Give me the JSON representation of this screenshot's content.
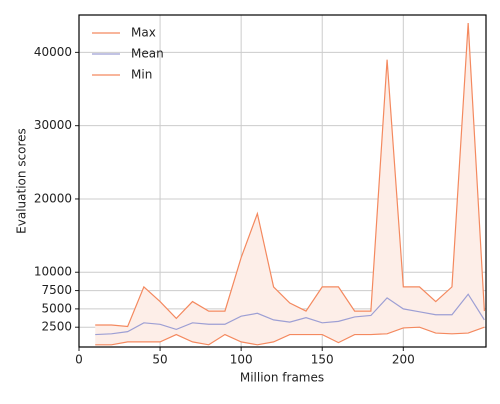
{
  "chart_data": {
    "type": "line",
    "xlabel": "Million frames",
    "ylabel": "Evaluation scores",
    "x": [
      10,
      20,
      30,
      40,
      50,
      60,
      70,
      80,
      90,
      100,
      110,
      120,
      130,
      140,
      150,
      160,
      170,
      180,
      190,
      200,
      210,
      220,
      230,
      240,
      250
    ],
    "series": [
      {
        "name": "Max",
        "color": "#f4895f",
        "values": [
          2800,
          2800,
          2600,
          8000,
          6000,
          3700,
          6000,
          4700,
          4700,
          12000,
          18000,
          8000,
          5800,
          4700,
          8000,
          8000,
          4700,
          4700,
          39000,
          8000,
          8000,
          6000,
          8000,
          44000,
          4700
        ]
      },
      {
        "name": "Mean",
        "color": "#9d9fd4",
        "values": [
          1500,
          1600,
          1900,
          3100,
          2900,
          2200,
          3100,
          2900,
          2900,
          4000,
          4400,
          3500,
          3200,
          3800,
          3100,
          3300,
          3900,
          4100,
          6500,
          5000,
          4600,
          4200,
          4200,
          7000,
          3500
        ]
      },
      {
        "name": "Min",
        "color": "#f4895f",
        "values": [
          100,
          100,
          500,
          500,
          500,
          1500,
          500,
          100,
          1500,
          500,
          100,
          500,
          1500,
          1500,
          1500,
          400,
          1500,
          1500,
          1600,
          2400,
          2500,
          1700,
          1600,
          1700,
          2500
        ]
      }
    ],
    "fill_between": [
      0,
      2
    ],
    "fill_color": "#fdeee8",
    "xlim": [
      0,
      251
    ],
    "ylim": [
      -200,
      45100
    ],
    "xticks": [
      0,
      50,
      100,
      150,
      200
    ],
    "yticks": [
      2500,
      5000,
      7500,
      10000,
      20000,
      30000,
      40000
    ],
    "grid": true,
    "legend": "upper left"
  }
}
